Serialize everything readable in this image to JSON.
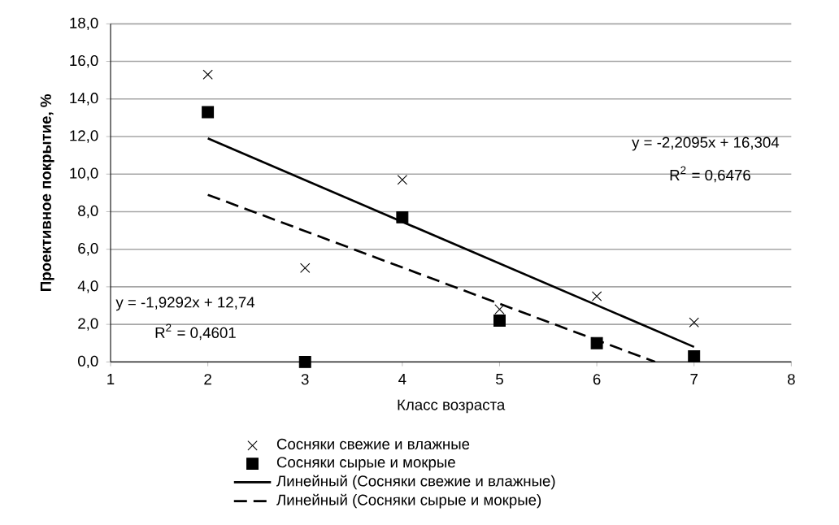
{
  "chart_data": {
    "type": "scatter",
    "xlabel": "Класс возраста",
    "ylabel": "Проективное покрытие, %",
    "xlim": [
      1,
      8
    ],
    "xticks": [
      1,
      2,
      3,
      4,
      5,
      6,
      7,
      8
    ],
    "ylim": [
      0,
      18
    ],
    "yticks": [
      {
        "value": 0,
        "label": "0,0"
      },
      {
        "value": 2,
        "label": "2,0"
      },
      {
        "value": 4,
        "label": "4,0"
      },
      {
        "value": 6,
        "label": "6,0"
      },
      {
        "value": 8,
        "label": "8,0"
      },
      {
        "value": 10,
        "label": "10,0"
      },
      {
        "value": 12,
        "label": "12,0"
      },
      {
        "value": 14,
        "label": "14,0"
      },
      {
        "value": 16,
        "label": "16,0"
      },
      {
        "value": 18,
        "label": "18,0"
      }
    ],
    "grid": "y",
    "legend": "bottom",
    "series": [
      {
        "name": "Сосняки свежие и влажные",
        "marker": "cross",
        "color": "#000000",
        "x": [
          2,
          3,
          4,
          5,
          6,
          7
        ],
        "values": [
          15.3,
          5.0,
          9.7,
          2.8,
          3.5,
          2.1
        ]
      },
      {
        "name": "Сосняки сырые и мокрые",
        "marker": "square",
        "color": "#000000",
        "x": [
          2,
          3,
          4,
          5,
          6,
          7
        ],
        "values": [
          13.3,
          0.0,
          7.7,
          2.2,
          1.0,
          0.3
        ]
      },
      {
        "name": "Линейный (Сосняки свежие и влажные)",
        "type": "line",
        "marker": "none",
        "line_style": "solid",
        "color": "#000000",
        "x": [
          2,
          7
        ],
        "values": [
          11.9,
          0.8
        ]
      },
      {
        "name": "Линейный (Сосняки сырые и мокрые)",
        "type": "line",
        "marker": "none",
        "line_style": "dashed",
        "color": "#000000",
        "x": [
          2,
          6.6
        ],
        "values": [
          8.9,
          0.0
        ]
      }
    ],
    "annotations": [
      "y = -2,2095x + 16,304",
      "R$^{2}$ = 0,6476",
      "y = -1,9292x + 12,74",
      "R$^{2}$ = 0,4601"
    ]
  }
}
